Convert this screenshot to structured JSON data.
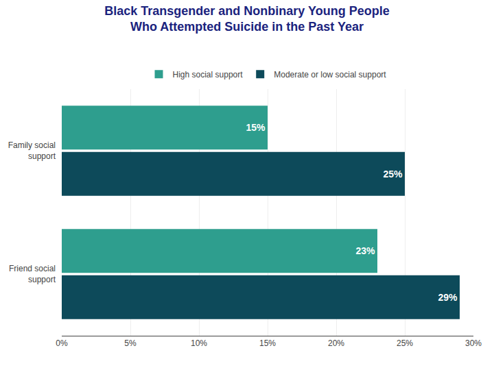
{
  "chart_data": {
    "type": "bar",
    "orientation": "horizontal",
    "title": "Black Transgender and Nonbinary Young People\nWho Attempted Suicide in the Past Year",
    "categories": [
      "Family social\nsupport",
      "Friend social\nsupport"
    ],
    "series": [
      {
        "name": "High social support",
        "color": "#2e9e8e",
        "values": [
          15,
          23
        ],
        "value_labels": [
          "15%",
          "23%"
        ]
      },
      {
        "name": "Moderate or low social support",
        "color": "#0d4a5a",
        "values": [
          25,
          29
        ],
        "value_labels": [
          "25%",
          "29%"
        ]
      }
    ],
    "xlim": [
      0,
      30
    ],
    "xticks": [
      {
        "value": 0,
        "label": "0%"
      },
      {
        "value": 5,
        "label": "5%"
      },
      {
        "value": 10,
        "label": "10%"
      },
      {
        "value": 15,
        "label": "15%"
      },
      {
        "value": 20,
        "label": "20%"
      },
      {
        "value": 25,
        "label": "25%"
      },
      {
        "value": 30,
        "label": "30%"
      }
    ],
    "grid": true,
    "legend": "top",
    "data_labels": true
  }
}
